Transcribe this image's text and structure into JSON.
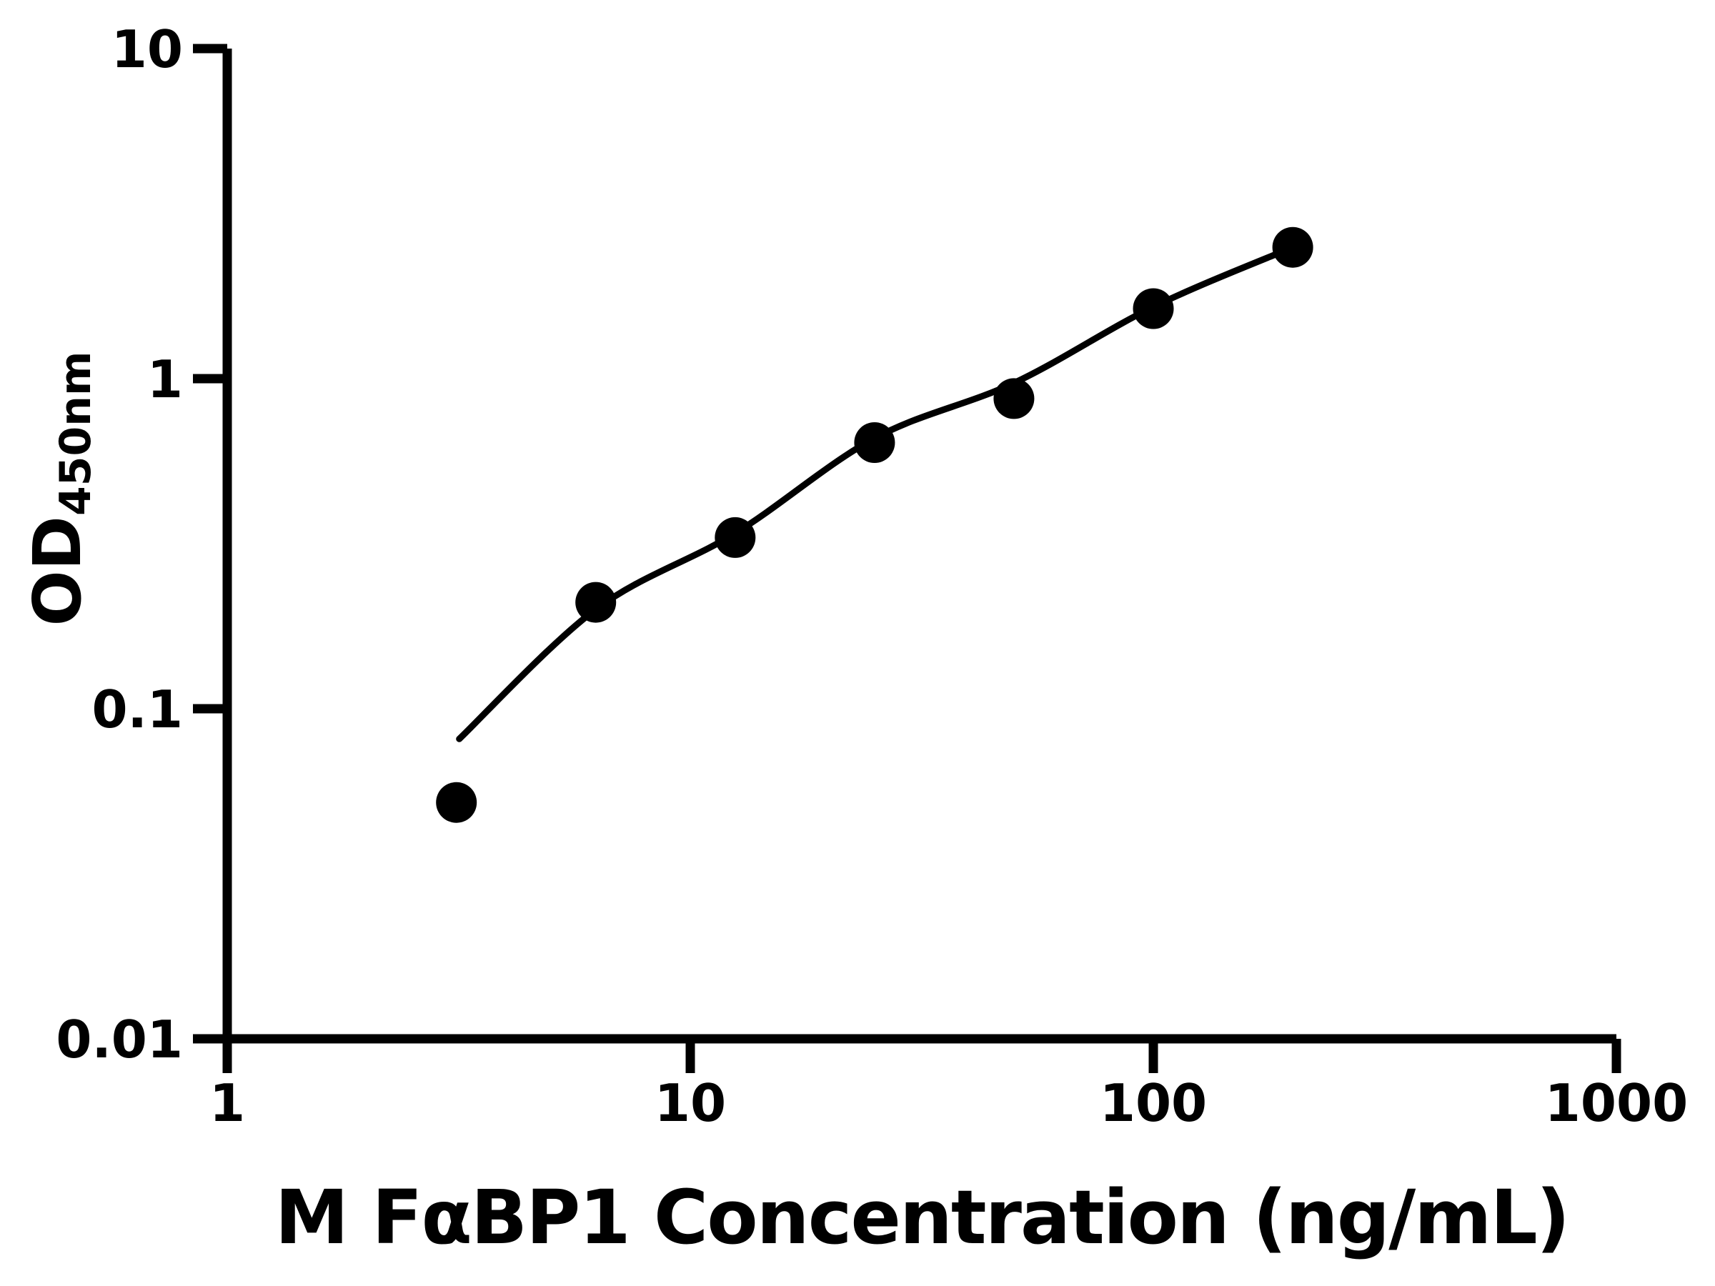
{
  "figure": {
    "background": "#ffffff",
    "foreground": "#000000"
  },
  "chart_data": {
    "type": "scatter",
    "title": "",
    "xlabel": "M FαBP1 Concentration (ng/mL)",
    "ylabel": {
      "main": "OD",
      "subscript": "450nm"
    },
    "x_scale": "log",
    "y_scale": "log",
    "xlim": [
      1,
      1000
    ],
    "ylim": [
      0.01,
      10
    ],
    "grid": false,
    "legend": false,
    "axis_color": "#000000",
    "x_ticks": [
      {
        "value": 1,
        "label": "1"
      },
      {
        "value": 10,
        "label": "10"
      },
      {
        "value": 100,
        "label": "100"
      },
      {
        "value": 1000,
        "label": "1000"
      }
    ],
    "y_ticks": [
      {
        "value": 10,
        "label": "10"
      },
      {
        "value": 1,
        "label": "1"
      },
      {
        "value": 0.1,
        "label": "0.1"
      },
      {
        "value": 0.01,
        "label": "0.01"
      }
    ],
    "series": [
      {
        "name": "standard-points",
        "type": "scatter",
        "marker": "circle",
        "color": "#000000",
        "points": [
          {
            "x": 3.125,
            "y": 0.052
          },
          {
            "x": 6.25,
            "y": 0.21
          },
          {
            "x": 12.5,
            "y": 0.33
          },
          {
            "x": 25,
            "y": 0.64
          },
          {
            "x": 50,
            "y": 0.87
          },
          {
            "x": 100,
            "y": 1.63
          },
          {
            "x": 200,
            "y": 2.5
          }
        ]
      },
      {
        "name": "fit-curve",
        "type": "line",
        "color": "#000000",
        "points": [
          {
            "x": 3.17,
            "y": 0.081
          },
          {
            "x": 6.25,
            "y": 0.2
          },
          {
            "x": 12.5,
            "y": 0.34
          },
          {
            "x": 25,
            "y": 0.66
          },
          {
            "x": 50,
            "y": 0.97
          },
          {
            "x": 100,
            "y": 1.65
          },
          {
            "x": 200,
            "y": 2.5
          }
        ]
      }
    ]
  }
}
